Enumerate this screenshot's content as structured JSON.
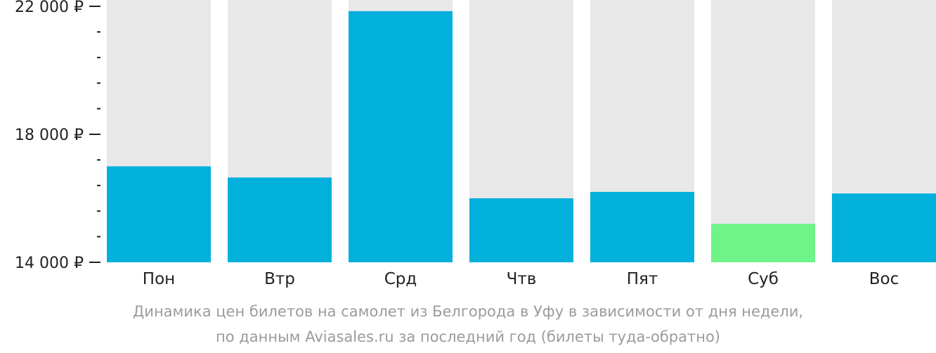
{
  "chart_data": {
    "type": "bar",
    "categories": [
      "Пон",
      "Втр",
      "Срд",
      "Чтв",
      "Пят",
      "Суб",
      "Вос"
    ],
    "values": [
      17000,
      16650,
      21850,
      16000,
      16200,
      15200,
      16150
    ],
    "ylim": [
      14000,
      22000
    ],
    "y_major_ticks": [
      {
        "value": 14000,
        "label": "14 000 ₽"
      },
      {
        "value": 18000,
        "label": "18 000 ₽"
      },
      {
        "value": 22000,
        "label": "22 000 ₽"
      }
    ],
    "y_minor_step": 800,
    "highlight_index": 5,
    "colors": {
      "bar": "#02b0dc",
      "highlight": "#6ef487",
      "background_column": "#e8e8e8",
      "axis": "#222222"
    },
    "grid": false,
    "legend": "none",
    "caption": [
      "Динамика цен билетов на самолет из Белгорода в Уфу в зависимости от дня недели,",
      "по данным Aviasales.ru за последний год (билеты туда-обратно)"
    ]
  }
}
